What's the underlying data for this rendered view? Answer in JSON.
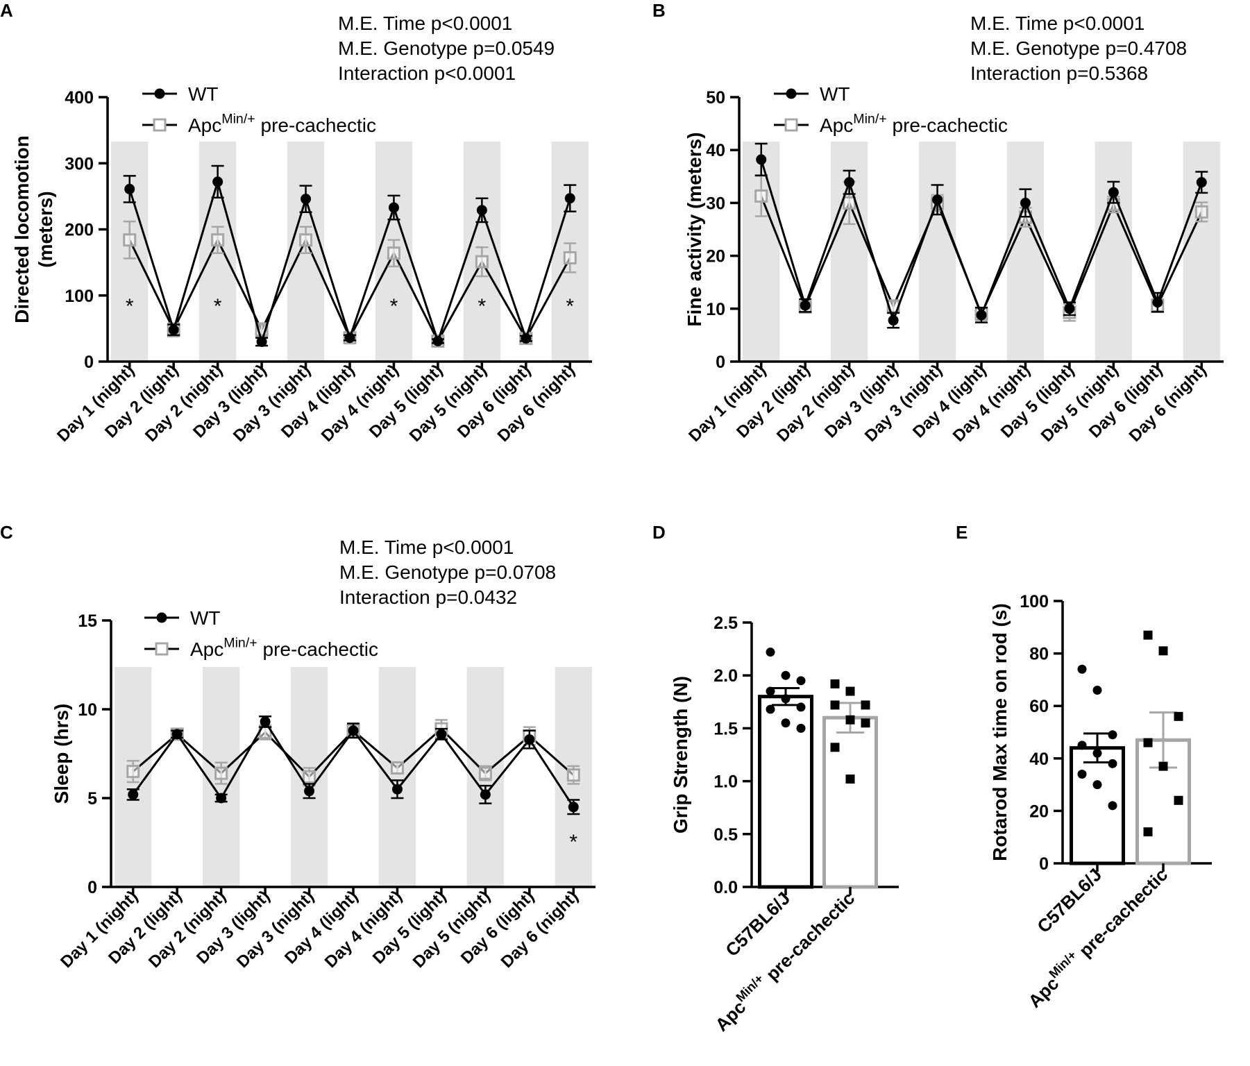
{
  "colors": {
    "wt": "#000000",
    "apc": "#a6a6a6",
    "night_band": "#e4e4e4",
    "axis": "#000000"
  },
  "legend": {
    "wt": "WT",
    "apc_prefix": "Apc",
    "apc_sup": "Min/+",
    "apc_suffix": "pre-cachectic"
  },
  "chart_data": [
    {
      "id": "A",
      "type": "line",
      "panel_label": "A",
      "ylabel_lines": [
        "Directed locomotion",
        "(meters)"
      ],
      "ylim": [
        0,
        400
      ],
      "yticks": [
        0,
        100,
        200,
        300,
        400
      ],
      "categories": [
        "Day 1 (night)",
        "Day 2 (light)",
        "Day 2 (night)",
        "Day 3 (light)",
        "Day 3 (night)",
        "Day 4 (light)",
        "Day 4 (night)",
        "Day 5 (light)",
        "Day 5 (night)",
        "Day 6 (light)",
        "Day 6 (night)"
      ],
      "night_indices": [
        0,
        2,
        4,
        6,
        8,
        10
      ],
      "stats": [
        "M.E. Time p<0.0001",
        "M.E. Genotype p=0.0549",
        "Interaction p<0.0001"
      ],
      "series": [
        {
          "name": "WT",
          "values": [
            261,
            48,
            272,
            30,
            246,
            36,
            233,
            31,
            229,
            35,
            247
          ],
          "errors": [
            20,
            8,
            24,
            6,
            20,
            4,
            18,
            3,
            18,
            4,
            20
          ]
        },
        {
          "name": "Apc Min/+ pre-cachectic",
          "values": [
            184,
            48,
            184,
            48,
            184,
            36,
            164,
            31,
            151,
            35,
            157
          ],
          "errors": [
            28,
            10,
            20,
            10,
            20,
            4,
            20,
            3,
            22,
            4,
            22
          ]
        }
      ],
      "annotations": [
        {
          "index": 0,
          "value": 88,
          "text": "*"
        },
        {
          "index": 2,
          "value": 88,
          "text": "*"
        },
        {
          "index": 6,
          "value": 88,
          "text": "*"
        },
        {
          "index": 8,
          "value": 88,
          "text": "*"
        },
        {
          "index": 10,
          "value": 88,
          "text": "*"
        }
      ]
    },
    {
      "id": "B",
      "type": "line",
      "panel_label": "B",
      "ylabel_lines": [
        "Fine activity (meters)"
      ],
      "ylim": [
        0,
        50
      ],
      "yticks": [
        0,
        10,
        20,
        30,
        40,
        50
      ],
      "categories": [
        "Day 1 (night)",
        "Day 2 (light)",
        "Day 2 (night)",
        "Day 3 (light)",
        "Day 3 (night)",
        "Day 4 (light)",
        "Day 4 (night)",
        "Day 5 (light)",
        "Day 5 (night)",
        "Day 6 (light)",
        "Day 6 (night)"
      ],
      "night_indices": [
        0,
        2,
        4,
        6,
        8,
        10
      ],
      "stats": [
        "M.E. Time p<0.0001",
        "M.E. Genotype p=0.4708",
        "Interaction p=0.5368"
      ],
      "series": [
        {
          "name": "WT",
          "values": [
            38.2,
            10.6,
            33.9,
            7.8,
            30.6,
            8.8,
            30.0,
            10.0,
            32.0,
            11.2,
            33.9
          ],
          "errors": [
            3.0,
            1.2,
            2.2,
            1.4,
            2.8,
            1.4,
            2.6,
            1.2,
            2.0,
            1.8,
            2.0
          ]
        },
        {
          "name": "Apc Min/+ pre-cachectic",
          "values": [
            31.3,
            10.3,
            30.0,
            10.4,
            30.0,
            9.0,
            27.3,
            9.3,
            29.7,
            10.6,
            28.3
          ],
          "errors": [
            3.8,
            1.0,
            4.0,
            1.2,
            1.5,
            1.2,
            1.8,
            1.6,
            1.5,
            1.2,
            1.8
          ]
        }
      ],
      "annotations": []
    },
    {
      "id": "C",
      "type": "line",
      "panel_label": "C",
      "ylabel_lines": [
        "Sleep (hrs)"
      ],
      "ylim": [
        0,
        15
      ],
      "yticks": [
        0,
        5,
        10,
        15
      ],
      "categories": [
        "Day 1 (night)",
        "Day 2 (light)",
        "Day 2 (night)",
        "Day 3 (light)",
        "Day 3 (night)",
        "Day 4 (light)",
        "Day 4 (night)",
        "Day 5 (light)",
        "Day 5 (night)",
        "Day 6 (light)",
        "Day 6 (night)"
      ],
      "night_indices": [
        0,
        2,
        4,
        6,
        8,
        10
      ],
      "stats": [
        "M.E. Time p<0.0001",
        "M.E. Genotype p=0.0708",
        "Interaction p=0.0432"
      ],
      "series": [
        {
          "name": "WT",
          "values": [
            5.2,
            8.6,
            5.0,
            9.3,
            5.4,
            8.8,
            5.5,
            8.6,
            5.2,
            8.3,
            4.5
          ],
          "errors": [
            0.3,
            0.2,
            0.2,
            0.3,
            0.4,
            0.4,
            0.5,
            0.3,
            0.5,
            0.5,
            0.4
          ]
        },
        {
          "name": "Apc Min/+ pre-cachectic",
          "values": [
            6.5,
            8.6,
            6.4,
            8.7,
            6.2,
            8.8,
            6.7,
            8.9,
            6.4,
            8.5,
            6.3
          ],
          "errors": [
            0.6,
            0.2,
            0.6,
            0.4,
            0.5,
            0.3,
            0.3,
            0.5,
            0.4,
            0.5,
            0.5
          ]
        }
      ],
      "annotations": [
        {
          "index": 10,
          "value": 2.7,
          "text": "*"
        }
      ]
    },
    {
      "id": "D",
      "type": "bar",
      "panel_label": "D",
      "ylabel": "Grip Strength (N)",
      "ylim": [
        0,
        2.5
      ],
      "yticks": [
        0.0,
        0.5,
        1.0,
        1.5,
        2.0,
        2.5
      ],
      "ytick_labels": [
        "0.0",
        "0.5",
        "1.0",
        "1.5",
        "2.0",
        "2.5"
      ],
      "categories": [
        "C57BL6/J",
        "Apc Min/+ pre-cachectic"
      ],
      "values": [
        1.8,
        1.6
      ],
      "errors": [
        0.08,
        0.14
      ],
      "points": [
        [
          2.22,
          2.0,
          1.95,
          1.85,
          1.78,
          1.7,
          1.68,
          1.55,
          1.5
        ],
        [
          1.92,
          1.85,
          1.72,
          1.72,
          1.58,
          1.55,
          1.32,
          1.02
        ]
      ]
    },
    {
      "id": "E",
      "type": "bar",
      "panel_label": "E",
      "ylabel": "Rotarod Max time on rod (s)",
      "ylim": [
        0,
        100
      ],
      "yticks": [
        0,
        20,
        40,
        60,
        80,
        100
      ],
      "ytick_labels": [
        "0",
        "20",
        "40",
        "60",
        "80",
        "100"
      ],
      "categories": [
        "C57BL6/J",
        "Apc Min/+ pre-cachectic"
      ],
      "values": [
        44,
        47
      ],
      "errors": [
        5.5,
        10.5
      ],
      "points": [
        [
          74,
          66,
          49,
          45,
          42,
          38,
          34,
          30,
          22
        ],
        [
          87,
          81,
          56,
          46,
          37,
          24,
          12
        ]
      ]
    }
  ]
}
